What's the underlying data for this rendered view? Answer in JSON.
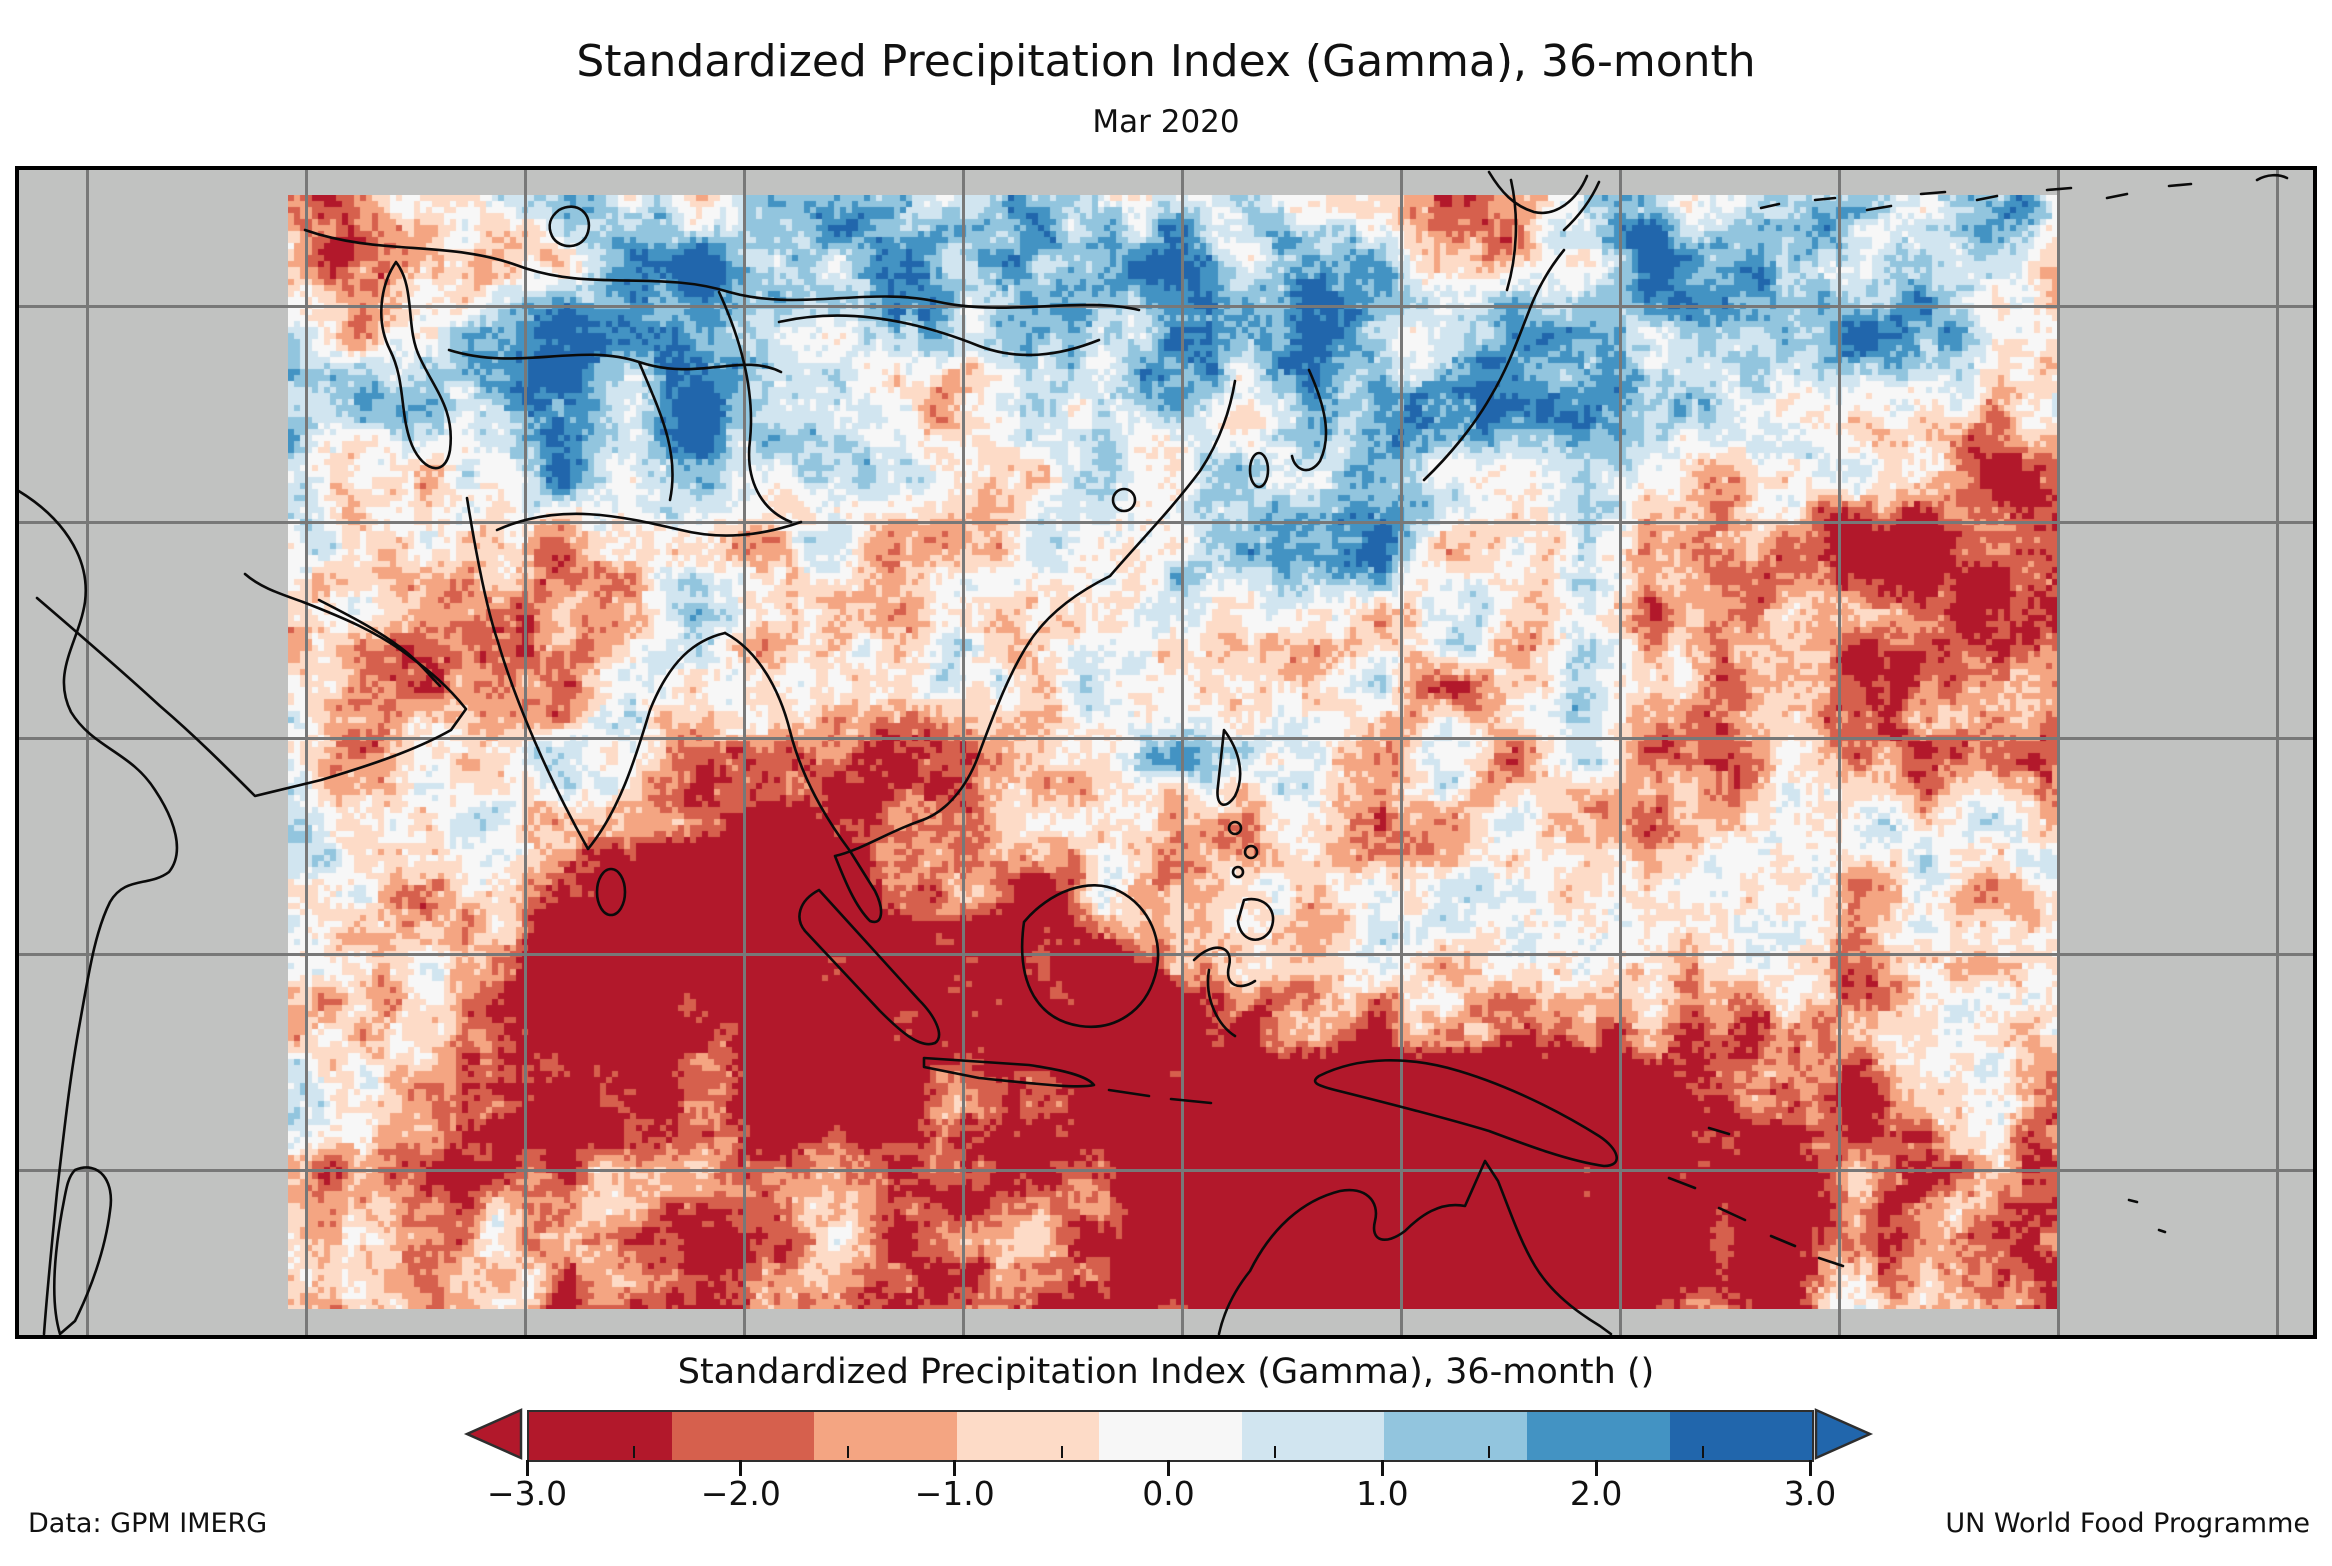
{
  "header": {
    "title": "Standardized Precipitation Index (Gamma), 36-month",
    "subtitle": "Mar 2020"
  },
  "colorbar": {
    "title": "Standardized Precipitation Index (Gamma), 36-month ()",
    "tick_labels": [
      "−3.0",
      "−2.0",
      "−1.0",
      "0.0",
      "1.0",
      "2.0",
      "3.0"
    ],
    "ticks": [
      -3,
      -2,
      -1,
      0,
      1,
      2,
      3
    ],
    "minor_ticks": [
      -2.5,
      -1.5,
      -0.5,
      0.5,
      1.5,
      2.5
    ],
    "range": [
      -3,
      3
    ],
    "boundaries": [
      -2.3333,
      -1.6667,
      -1.0,
      -0.3333,
      0.3333,
      1.0,
      1.6667,
      2.3333
    ],
    "segment_colors": [
      "#b2182b",
      "#d6604d",
      "#f4a582",
      "#fddbc7",
      "#f7f7f7",
      "#d1e5f0",
      "#92c5de",
      "#4393c3",
      "#2166ac"
    ],
    "extend_left_color": "#b2182b",
    "extend_right_color": "#2166ac"
  },
  "map": {
    "background_color": "#c1c2c1",
    "gridline_color": "#787878",
    "coastline_color": "#0b0b0b",
    "frame_color": "#000000",
    "noise_seed": 11
  },
  "footer": {
    "left": "Data: GPM IMERG",
    "right": "UN World Food Programme"
  },
  "chart_data": {
    "type": "heatmap",
    "title": "Standardized Precipitation Index (Gamma), 36-month",
    "subtitle": "Mar 2020",
    "variable": "Standardized Precipitation Index (Gamma), 36-month ()",
    "value_range": [
      -3,
      3
    ],
    "colorbar_ticks": [
      -3,
      -2,
      -1,
      0,
      1,
      2,
      3
    ],
    "class_boundaries": [
      -3,
      -2.3333,
      -1.6667,
      -1.0,
      -0.3333,
      0.3333,
      1.0,
      1.6667,
      2.3333,
      3
    ],
    "palette": [
      "#b2182b",
      "#d6604d",
      "#f4a582",
      "#fddbc7",
      "#f7f7f7",
      "#d1e5f0",
      "#92c5de",
      "#4393c3",
      "#2166ac"
    ],
    "legend_position": "bottom",
    "grid": "on",
    "data_source": "GPM IMERG",
    "attribution": "UN World Food Programme"
  }
}
